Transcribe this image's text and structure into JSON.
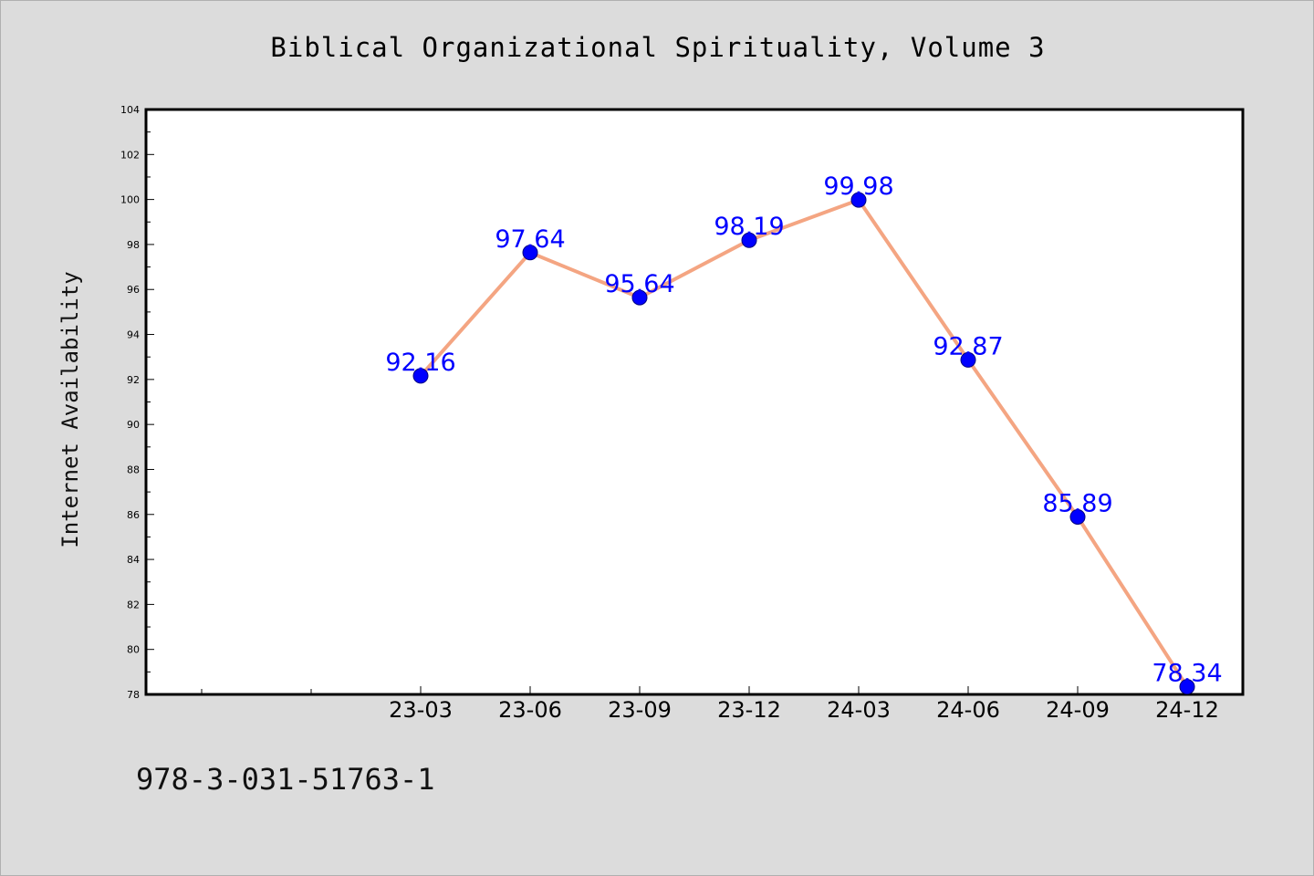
{
  "chart_data": {
    "type": "line",
    "title": "Biblical Organizational Spirituality, Volume 3",
    "xlabel": "",
    "ylabel": "Internet Availability",
    "categories": [
      "23-03",
      "23-06",
      "23-09",
      "23-12",
      "24-03",
      "24-06",
      "24-09",
      "24-12"
    ],
    "series": [
      {
        "values": [
          92.16,
          97.64,
          95.64,
          98.19,
          99.98,
          92.87,
          85.89,
          78.34
        ],
        "labels": [
          "92.16",
          "97.64",
          "95.64",
          "98.19",
          "99.98",
          "92.87",
          "85.89",
          "78.34"
        ]
      }
    ],
    "ylim": [
      78,
      104
    ],
    "yticks": [
      "78",
      "80",
      "82",
      "84",
      "86",
      "88",
      "90",
      "92",
      "94",
      "96",
      "98",
      "100",
      "102",
      "104"
    ],
    "grid": false,
    "colors": {
      "line": "#f4a582",
      "marker": "#0000ff",
      "label": "#0000ff",
      "plot_background": "#ffffff",
      "page_background": "#dcdcdc"
    }
  },
  "footer": {
    "code": "978-3-031-51763-1"
  }
}
